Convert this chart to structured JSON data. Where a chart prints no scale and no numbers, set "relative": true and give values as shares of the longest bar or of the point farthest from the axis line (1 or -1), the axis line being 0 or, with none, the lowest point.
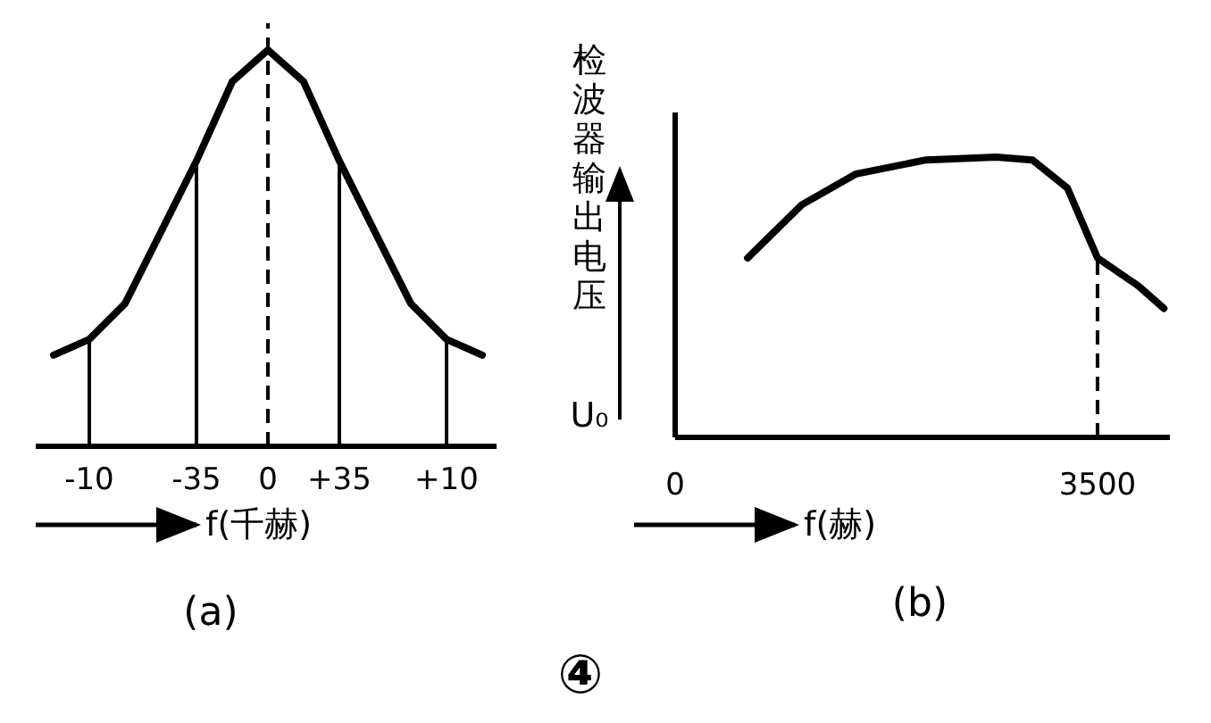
{
  "chart_data": [
    {
      "type": "line",
      "relative": true,
      "categories": [
        null,
        "-10",
        null,
        null,
        "-35",
        null,
        "0",
        null,
        "+35",
        null,
        null,
        "+10",
        null
      ],
      "values": [
        0.23,
        0.27,
        0.36,
        0.54,
        0.72,
        0.92,
        1,
        0.92,
        0.72,
        0.54,
        0.36,
        0.27,
        0.23
      ],
      "ref_lines": [
        {
          "axis": "x",
          "value": "0",
          "line_style": "dashed"
        },
        {
          "axis": "x",
          "value": "-10",
          "line_style": "solid"
        },
        {
          "axis": "x",
          "value": "-35",
          "line_style": "solid"
        },
        {
          "axis": "x",
          "value": "+35",
          "line_style": "solid"
        },
        {
          "axis": "x",
          "value": "+10",
          "line_style": "solid"
        }
      ],
      "xlabel": "f(千赫)",
      "annotations": [
        "(a)"
      ]
    },
    {
      "type": "line",
      "relative": true,
      "x": [
        600,
        1050,
        1500,
        2080,
        2660,
        2960,
        3250,
        3500,
        3840,
        4050
      ],
      "values": [
        0.64,
        0.83,
        0.94,
        0.99,
        1,
        0.99,
        0.89,
        0.64,
        0.54,
        0.46
      ],
      "xlim": [
        0,
        4100
      ],
      "xticks": [
        0,
        3500
      ],
      "ref_lines": [
        {
          "axis": "x",
          "value": 3500,
          "line_style": "dashed"
        }
      ],
      "xlabel": "f(赫)",
      "ylabel": "检波器输出电压U₀",
      "annotations": [
        "(b)",
        "④"
      ]
    }
  ]
}
